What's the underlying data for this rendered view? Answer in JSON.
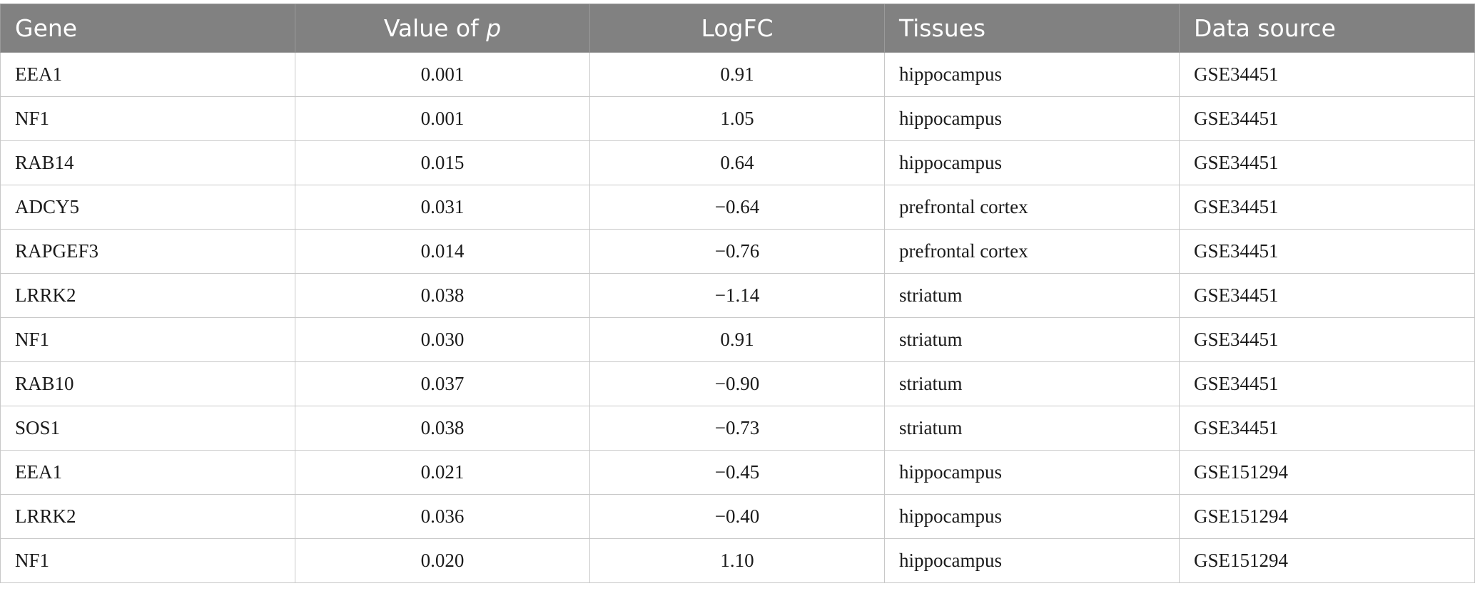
{
  "table": {
    "headers": [
      {
        "text": "Gene",
        "suffix": ""
      },
      {
        "text": "Value of ",
        "suffix": "p"
      },
      {
        "text": "LogFC",
        "suffix": ""
      },
      {
        "text": "Tissues",
        "suffix": ""
      },
      {
        "text": "Data source",
        "suffix": ""
      }
    ],
    "rows": [
      [
        "EEA1",
        "0.001",
        "0.91",
        "hippocampus",
        "GSE34451"
      ],
      [
        "NF1",
        "0.001",
        "1.05",
        "hippocampus",
        "GSE34451"
      ],
      [
        "RAB14",
        "0.015",
        "0.64",
        "hippocampus",
        "GSE34451"
      ],
      [
        "ADCY5",
        "0.031",
        "−0.64",
        "prefrontal cortex",
        "GSE34451"
      ],
      [
        "RAPGEF3",
        "0.014",
        "−0.76",
        "prefrontal cortex",
        "GSE34451"
      ],
      [
        "LRRK2",
        "0.038",
        "−1.14",
        "striatum",
        "GSE34451"
      ],
      [
        "NF1",
        "0.030",
        "0.91",
        "striatum",
        "GSE34451"
      ],
      [
        "RAB10",
        "0.037",
        "−0.90",
        "striatum",
        "GSE34451"
      ],
      [
        "SOS1",
        "0.038",
        "−0.73",
        "striatum",
        "GSE34451"
      ],
      [
        "EEA1",
        "0.021",
        "−0.45",
        "hippocampus",
        "GSE151294"
      ],
      [
        "LRRK2",
        "0.036",
        "−0.40",
        "hippocampus",
        "GSE151294"
      ],
      [
        "NF1",
        "0.020",
        "1.10",
        "hippocampus",
        "GSE151294"
      ]
    ]
  },
  "colors": {
    "header_bg": "#818181",
    "header_text": "#ffffff",
    "border": "#c8c8c8",
    "cell_text": "#1a1a1a"
  }
}
